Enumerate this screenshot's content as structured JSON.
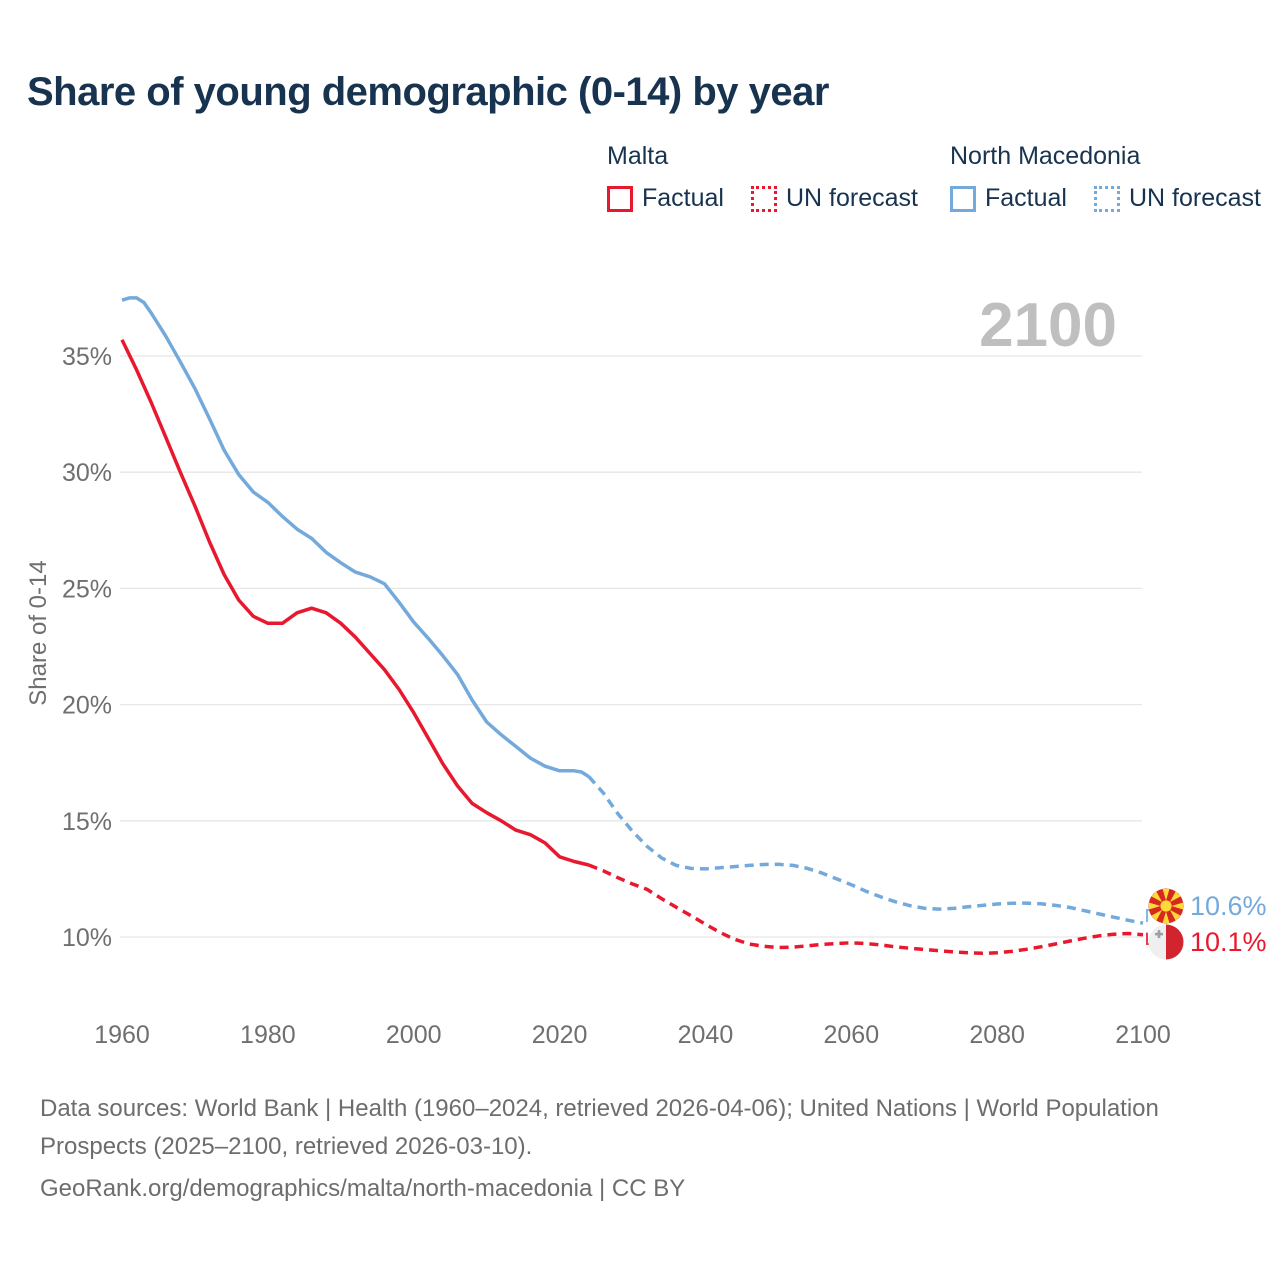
{
  "page": {
    "title": "Share of young demographic (0-14) by year"
  },
  "legend": {
    "groups": [
      {
        "country": "Malta",
        "color": "#e8192e",
        "items": [
          {
            "label": "Factual",
            "style": "solid"
          },
          {
            "label": "UN forecast",
            "style": "dotted"
          }
        ]
      },
      {
        "country": "North Macedonia",
        "color": "#74a9dc",
        "items": [
          {
            "label": "Factual",
            "style": "solid"
          },
          {
            "label": "UN forecast",
            "style": "dotted"
          }
        ]
      }
    ]
  },
  "colors": {
    "malta": "#e8192e",
    "north_macedonia": "#74a9dc",
    "title_text": "#17334f",
    "axis_text": "#6f6f6f",
    "gridline": "#e7e7e7",
    "watermark": "#bfbfbf",
    "footer_text": "#6d6d6d"
  },
  "chart_data": {
    "type": "line",
    "title": "Share of young demographic (0-14) by year",
    "xlabel": "",
    "ylabel": "Share of 0-14",
    "watermark": "2100",
    "grid": true,
    "legend_position": "top-right",
    "xlim": [
      1957,
      2118
    ],
    "ylim_percent": [
      8,
      38.5
    ],
    "yticks": [
      {
        "v": 35,
        "label": "35%"
      },
      {
        "v": 30,
        "label": "30%"
      },
      {
        "v": 25,
        "label": "25%"
      },
      {
        "v": 20,
        "label": "20%"
      },
      {
        "v": 15,
        "label": "15%"
      },
      {
        "v": 10,
        "label": "10%"
      }
    ],
    "xticks": [
      {
        "v": 1960,
        "label": "1960"
      },
      {
        "v": 1980,
        "label": "1980"
      },
      {
        "v": 2000,
        "label": "2000"
      },
      {
        "v": 2020,
        "label": "2020"
      },
      {
        "v": 2040,
        "label": "2040"
      },
      {
        "v": 2060,
        "label": "2060"
      },
      {
        "v": 2080,
        "label": "2080"
      },
      {
        "v": 2100,
        "label": "2100"
      }
    ],
    "series": [
      {
        "key": "north-macedonia-factual",
        "name": "North Macedonia — Factual",
        "color": "#74a9dc",
        "dash": "solid",
        "points": [
          [
            1960,
            37.4
          ],
          [
            1961,
            37.5
          ],
          [
            1962,
            37.5
          ],
          [
            1963,
            37.3
          ],
          [
            1964,
            36.85
          ],
          [
            1966,
            35.85
          ],
          [
            1968,
            34.75
          ],
          [
            1970,
            33.6
          ],
          [
            1972,
            32.3
          ],
          [
            1974,
            30.95
          ],
          [
            1976,
            29.9
          ],
          [
            1978,
            29.15
          ],
          [
            1980,
            28.7
          ],
          [
            1982,
            28.1
          ],
          [
            1984,
            27.55
          ],
          [
            1986,
            27.15
          ],
          [
            1988,
            26.55
          ],
          [
            1990,
            26.1
          ],
          [
            1992,
            25.7
          ],
          [
            1994,
            25.5
          ],
          [
            1996,
            25.2
          ],
          [
            1998,
            24.4
          ],
          [
            2000,
            23.55
          ],
          [
            2002,
            22.85
          ],
          [
            2004,
            22.1
          ],
          [
            2006,
            21.3
          ],
          [
            2008,
            20.2
          ],
          [
            2010,
            19.25
          ],
          [
            2012,
            18.7
          ],
          [
            2014,
            18.2
          ],
          [
            2016,
            17.7
          ],
          [
            2018,
            17.35
          ],
          [
            2020,
            17.15
          ],
          [
            2022,
            17.15
          ],
          [
            2023,
            17.1
          ],
          [
            2024,
            16.9
          ]
        ]
      },
      {
        "key": "north-macedonia-forecast",
        "name": "North Macedonia — UN forecast",
        "color": "#74a9dc",
        "dash": "dashed",
        "points": [
          [
            2024,
            16.9
          ],
          [
            2026,
            16.2
          ],
          [
            2028,
            15.3
          ],
          [
            2030,
            14.55
          ],
          [
            2032,
            13.9
          ],
          [
            2034,
            13.4
          ],
          [
            2036,
            13.08
          ],
          [
            2038,
            12.95
          ],
          [
            2040,
            12.93
          ],
          [
            2042,
            12.98
          ],
          [
            2044,
            13.03
          ],
          [
            2046,
            13.08
          ],
          [
            2048,
            13.12
          ],
          [
            2050,
            13.13
          ],
          [
            2052,
            13.08
          ],
          [
            2054,
            12.95
          ],
          [
            2056,
            12.75
          ],
          [
            2058,
            12.5
          ],
          [
            2060,
            12.25
          ],
          [
            2062,
            11.97
          ],
          [
            2064,
            11.73
          ],
          [
            2066,
            11.52
          ],
          [
            2068,
            11.35
          ],
          [
            2070,
            11.24
          ],
          [
            2072,
            11.2
          ],
          [
            2074,
            11.23
          ],
          [
            2076,
            11.3
          ],
          [
            2078,
            11.36
          ],
          [
            2080,
            11.42
          ],
          [
            2082,
            11.45
          ],
          [
            2084,
            11.46
          ],
          [
            2086,
            11.43
          ],
          [
            2088,
            11.36
          ],
          [
            2090,
            11.27
          ],
          [
            2092,
            11.13
          ],
          [
            2094,
            10.99
          ],
          [
            2096,
            10.85
          ],
          [
            2098,
            10.72
          ],
          [
            2100,
            10.6
          ]
        ]
      },
      {
        "key": "malta-factual",
        "name": "Malta — Factual",
        "color": "#e8192e",
        "dash": "solid",
        "points": [
          [
            1960,
            35.7
          ],
          [
            1962,
            34.4
          ],
          [
            1964,
            33.0
          ],
          [
            1966,
            31.5
          ],
          [
            1968,
            30.0
          ],
          [
            1970,
            28.55
          ],
          [
            1972,
            27.0
          ],
          [
            1974,
            25.6
          ],
          [
            1976,
            24.5
          ],
          [
            1978,
            23.8
          ],
          [
            1980,
            23.5
          ],
          [
            1982,
            23.5
          ],
          [
            1984,
            23.95
          ],
          [
            1986,
            24.15
          ],
          [
            1988,
            23.95
          ],
          [
            1990,
            23.5
          ],
          [
            1992,
            22.9
          ],
          [
            1994,
            22.2
          ],
          [
            1996,
            21.5
          ],
          [
            1998,
            20.65
          ],
          [
            2000,
            19.65
          ],
          [
            2002,
            18.55
          ],
          [
            2004,
            17.45
          ],
          [
            2006,
            16.5
          ],
          [
            2008,
            15.75
          ],
          [
            2010,
            15.35
          ],
          [
            2012,
            15.0
          ],
          [
            2014,
            14.6
          ],
          [
            2016,
            14.4
          ],
          [
            2018,
            14.05
          ],
          [
            2020,
            13.45
          ],
          [
            2022,
            13.25
          ],
          [
            2024,
            13.1
          ]
        ]
      },
      {
        "key": "malta-forecast",
        "name": "Malta — UN forecast",
        "color": "#e8192e",
        "dash": "dashed",
        "points": [
          [
            2024,
            13.1
          ],
          [
            2026,
            12.85
          ],
          [
            2028,
            12.55
          ],
          [
            2030,
            12.28
          ],
          [
            2032,
            12.05
          ],
          [
            2034,
            11.65
          ],
          [
            2036,
            11.28
          ],
          [
            2038,
            10.92
          ],
          [
            2040,
            10.55
          ],
          [
            2042,
            10.2
          ],
          [
            2044,
            9.9
          ],
          [
            2046,
            9.7
          ],
          [
            2048,
            9.6
          ],
          [
            2050,
            9.55
          ],
          [
            2052,
            9.56
          ],
          [
            2054,
            9.62
          ],
          [
            2056,
            9.68
          ],
          [
            2058,
            9.72
          ],
          [
            2060,
            9.75
          ],
          [
            2062,
            9.72
          ],
          [
            2064,
            9.66
          ],
          [
            2066,
            9.58
          ],
          [
            2068,
            9.52
          ],
          [
            2070,
            9.46
          ],
          [
            2072,
            9.41
          ],
          [
            2074,
            9.36
          ],
          [
            2076,
            9.32
          ],
          [
            2078,
            9.3
          ],
          [
            2080,
            9.32
          ],
          [
            2082,
            9.38
          ],
          [
            2084,
            9.47
          ],
          [
            2086,
            9.58
          ],
          [
            2088,
            9.7
          ],
          [
            2090,
            9.83
          ],
          [
            2092,
            9.95
          ],
          [
            2094,
            10.05
          ],
          [
            2096,
            10.12
          ],
          [
            2098,
            10.15
          ],
          [
            2100,
            10.1
          ]
        ]
      }
    ],
    "end_labels": [
      {
        "series": "North Macedonia",
        "flag": "north-macedonia",
        "value_label": "10.6%",
        "value": 10.6,
        "color": "#74a9dc"
      },
      {
        "series": "Malta",
        "flag": "malta",
        "value_label": "10.1%",
        "value": 10.1,
        "color": "#e8192e"
      }
    ]
  },
  "footer": {
    "sources_line": "Data sources: World Bank | Health (1960–2024, retrieved 2026-04-06); United Nations | World Population Prospects (2025–2100, retrieved 2026-03-10).",
    "attribution_line": "GeoRank.org/demographics/malta/north-macedonia | CC BY"
  }
}
